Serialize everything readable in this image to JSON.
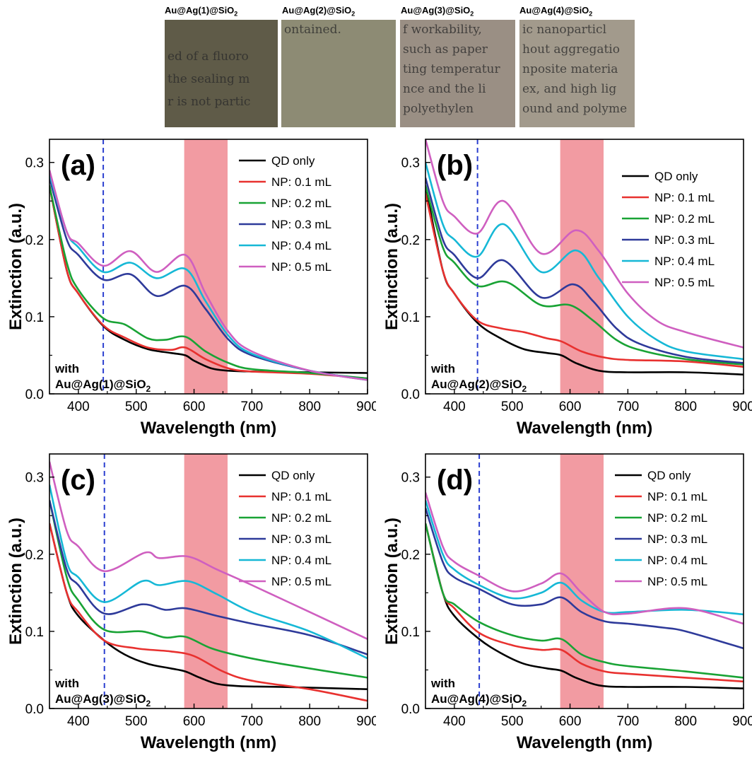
{
  "photos": [
    {
      "label": "Au@Ag(1)@SiO",
      "sub": "2",
      "bg": "#5f5b48",
      "lines": [
        "ed of a fluoro",
        "the sealing m",
        "r is not partic"
      ]
    },
    {
      "label": "Au@Ag(2)@SiO",
      "sub": "2",
      "bg": "#8d8b74",
      "lines": [
        "ontained.",
        "",
        ""
      ]
    },
    {
      "label": "Au@Ag(3)@SiO",
      "sub": "2",
      "bg": "#9a8f84",
      "lines": [
        "f workability,",
        "such as paper",
        "ting temperatur",
        "nce and the li",
        "polyethylen"
      ]
    },
    {
      "label": "Au@Ag(4)@SiO",
      "sub": "2",
      "bg": "#a29a8c",
      "lines": [
        "ic nanoparticl",
        "hout aggregatio",
        "nposite materia",
        "ex, and high lig",
        "ound and polyme"
      ]
    }
  ],
  "colors": {
    "QD only": "#000000",
    "NP: 0.1 mL": "#e8312f",
    "NP: 0.2 mL": "#19a335",
    "NP: 0.3 mL": "#2e3a9a",
    "NP: 0.4 mL": "#16b8d6",
    "NP: 0.5 mL": "#cf5fc0",
    "dashed_line": "#2b3fd0",
    "band": "#f08a92"
  },
  "chart_data": [
    {
      "type": "line",
      "panel": "(a)",
      "annotation": "with",
      "annotation_sub": "Au@Ag(1)@SiO2",
      "xlabel": "Wavelength (nm)",
      "ylabel": "Extinction (a.u.)",
      "xlim": [
        350,
        900
      ],
      "ylim": [
        0,
        0.33
      ],
      "xticks": [
        400,
        500,
        600,
        700,
        800,
        900
      ],
      "yticks": [
        0.0,
        0.1,
        0.2,
        0.3
      ],
      "dashed_x": 443,
      "band": [
        583,
        658
      ],
      "legend_position": "top-right",
      "series": [
        {
          "name": "QD only",
          "x": [
            350,
            380,
            400,
            443,
            480,
            520,
            560,
            585,
            600,
            630,
            660,
            700,
            800,
            900
          ],
          "y": [
            0.27,
            0.16,
            0.13,
            0.088,
            0.07,
            0.058,
            0.053,
            0.05,
            0.043,
            0.033,
            0.03,
            0.029,
            0.028,
            0.027
          ]
        },
        {
          "name": "NP: 0.1 mL",
          "x": [
            350,
            380,
            400,
            443,
            480,
            520,
            560,
            585,
            620,
            660,
            700,
            800,
            900
          ],
          "y": [
            0.27,
            0.16,
            0.13,
            0.089,
            0.073,
            0.06,
            0.057,
            0.06,
            0.045,
            0.033,
            0.029,
            0.026,
            0.02
          ]
        },
        {
          "name": "NP: 0.2 mL",
          "x": [
            350,
            380,
            400,
            443,
            480,
            520,
            550,
            585,
            620,
            660,
            700,
            800,
            900
          ],
          "y": [
            0.27,
            0.17,
            0.135,
            0.098,
            0.09,
            0.072,
            0.07,
            0.074,
            0.055,
            0.04,
            0.032,
            0.027,
            0.02
          ]
        },
        {
          "name": "NP: 0.3 mL",
          "x": [
            350,
            380,
            400,
            443,
            490,
            535,
            585,
            620,
            660,
            700,
            800,
            900
          ],
          "y": [
            0.28,
            0.2,
            0.18,
            0.148,
            0.155,
            0.127,
            0.14,
            0.11,
            0.07,
            0.05,
            0.03,
            0.018
          ]
        },
        {
          "name": "NP: 0.4 mL",
          "x": [
            350,
            380,
            400,
            443,
            490,
            535,
            585,
            620,
            660,
            700,
            800,
            900
          ],
          "y": [
            0.285,
            0.21,
            0.19,
            0.158,
            0.17,
            0.15,
            0.162,
            0.12,
            0.075,
            0.052,
            0.03,
            0.018
          ]
        },
        {
          "name": "NP: 0.5 mL",
          "x": [
            350,
            380,
            400,
            443,
            490,
            535,
            585,
            620,
            660,
            700,
            800,
            900
          ],
          "y": [
            0.29,
            0.21,
            0.195,
            0.166,
            0.185,
            0.158,
            0.18,
            0.13,
            0.08,
            0.055,
            0.03,
            0.018
          ]
        }
      ]
    },
    {
      "type": "line",
      "panel": "(b)",
      "annotation": "with",
      "annotation_sub": "Au@Ag(2)@SiO2",
      "xlabel": "Wavelength (nm)",
      "ylabel": "Extinction (a.u.)",
      "xlim": [
        350,
        900
      ],
      "ylim": [
        0,
        0.33
      ],
      "xticks": [
        400,
        500,
        600,
        700,
        800,
        900
      ],
      "yticks": [
        0.0,
        0.1,
        0.2,
        0.3
      ],
      "dashed_x": 440,
      "band": [
        583,
        658
      ],
      "legend_position": "top-right",
      "series": [
        {
          "name": "QD only",
          "x": [
            350,
            380,
            400,
            440,
            480,
            520,
            560,
            585,
            610,
            650,
            700,
            800,
            900
          ],
          "y": [
            0.27,
            0.16,
            0.13,
            0.092,
            0.072,
            0.058,
            0.053,
            0.05,
            0.04,
            0.03,
            0.028,
            0.028,
            0.025
          ]
        },
        {
          "name": "NP: 0.1 mL",
          "x": [
            350,
            380,
            400,
            440,
            480,
            520,
            560,
            585,
            620,
            660,
            700,
            800,
            900
          ],
          "y": [
            0.26,
            0.16,
            0.13,
            0.095,
            0.085,
            0.08,
            0.072,
            0.068,
            0.055,
            0.047,
            0.044,
            0.042,
            0.035
          ]
        },
        {
          "name": "NP: 0.2 mL",
          "x": [
            350,
            380,
            400,
            440,
            490,
            550,
            600,
            640,
            680,
            720,
            800,
            900
          ],
          "y": [
            0.27,
            0.19,
            0.17,
            0.14,
            0.145,
            0.115,
            0.115,
            0.095,
            0.07,
            0.057,
            0.045,
            0.038
          ]
        },
        {
          "name": "NP: 0.3 mL",
          "x": [
            350,
            380,
            400,
            440,
            485,
            550,
            605,
            640,
            680,
            720,
            800,
            900
          ],
          "y": [
            0.28,
            0.2,
            0.18,
            0.15,
            0.173,
            0.125,
            0.142,
            0.12,
            0.085,
            0.065,
            0.048,
            0.04
          ]
        },
        {
          "name": "NP: 0.4 mL",
          "x": [
            350,
            380,
            400,
            440,
            485,
            550,
            610,
            650,
            700,
            750,
            800,
            900
          ],
          "y": [
            0.3,
            0.22,
            0.2,
            0.178,
            0.22,
            0.158,
            0.186,
            0.15,
            0.1,
            0.07,
            0.055,
            0.045
          ]
        },
        {
          "name": "NP: 0.5 mL",
          "x": [
            350,
            380,
            400,
            440,
            485,
            550,
            610,
            650,
            700,
            750,
            800,
            900
          ],
          "y": [
            0.33,
            0.25,
            0.23,
            0.208,
            0.25,
            0.182,
            0.212,
            0.185,
            0.13,
            0.095,
            0.08,
            0.06
          ]
        }
      ]
    },
    {
      "type": "line",
      "panel": "(c)",
      "annotation": "with",
      "annotation_sub": "Au@Ag(3)@SiO2",
      "xlabel": "Wavelength (nm)",
      "ylabel": "Extinction (a.u.)",
      "xlim": [
        350,
        900
      ],
      "ylim": [
        0,
        0.33
      ],
      "xticks": [
        400,
        500,
        600,
        700,
        800,
        900
      ],
      "yticks": [
        0.0,
        0.1,
        0.2,
        0.3
      ],
      "dashed_x": 445,
      "band": [
        583,
        658
      ],
      "legend_position": "top-right",
      "series": [
        {
          "name": "QD only",
          "x": [
            350,
            380,
            400,
            445,
            480,
            520,
            560,
            585,
            610,
            640,
            680,
            750,
            900
          ],
          "y": [
            0.24,
            0.15,
            0.12,
            0.088,
            0.07,
            0.058,
            0.052,
            0.048,
            0.04,
            0.032,
            0.029,
            0.028,
            0.025
          ]
        },
        {
          "name": "NP: 0.1 mL",
          "x": [
            350,
            380,
            400,
            445,
            500,
            560,
            600,
            650,
            700,
            800,
            900
          ],
          "y": [
            0.24,
            0.15,
            0.125,
            0.088,
            0.078,
            0.074,
            0.068,
            0.048,
            0.036,
            0.025,
            0.01
          ]
        },
        {
          "name": "NP: 0.2 mL",
          "x": [
            350,
            380,
            400,
            445,
            510,
            550,
            585,
            630,
            680,
            750,
            900
          ],
          "y": [
            0.27,
            0.17,
            0.14,
            0.102,
            0.1,
            0.092,
            0.093,
            0.078,
            0.068,
            0.058,
            0.04
          ]
        },
        {
          "name": "NP: 0.3 mL",
          "x": [
            350,
            380,
            400,
            445,
            510,
            550,
            585,
            640,
            700,
            800,
            900
          ],
          "y": [
            0.27,
            0.18,
            0.16,
            0.123,
            0.135,
            0.128,
            0.13,
            0.12,
            0.11,
            0.095,
            0.07
          ]
        },
        {
          "name": "NP: 0.4 mL",
          "x": [
            350,
            380,
            400,
            445,
            510,
            540,
            590,
            640,
            700,
            800,
            900
          ],
          "y": [
            0.29,
            0.19,
            0.17,
            0.138,
            0.165,
            0.16,
            0.165,
            0.148,
            0.125,
            0.1,
            0.065
          ]
        },
        {
          "name": "NP: 0.5 mL",
          "x": [
            350,
            380,
            400,
            445,
            515,
            540,
            590,
            640,
            700,
            800,
            900
          ],
          "y": [
            0.32,
            0.23,
            0.21,
            0.178,
            0.202,
            0.195,
            0.197,
            0.18,
            0.16,
            0.125,
            0.09
          ]
        }
      ]
    },
    {
      "type": "line",
      "panel": "(d)",
      "annotation": "with",
      "annotation_sub": "Au@Ag(4)@SiO2",
      "xlabel": "Wavelength (nm)",
      "ylabel": "Extinction (a.u.)",
      "xlim": [
        350,
        900
      ],
      "ylim": [
        0,
        0.33
      ],
      "xticks": [
        400,
        500,
        600,
        700,
        800,
        900
      ],
      "yticks": [
        0.0,
        0.1,
        0.2,
        0.3
      ],
      "dashed_x": 443,
      "band": [
        583,
        658
      ],
      "legend_position": "top-right",
      "series": [
        {
          "name": "QD only",
          "x": [
            350,
            380,
            400,
            443,
            480,
            520,
            560,
            585,
            610,
            650,
            700,
            800,
            900
          ],
          "y": [
            0.24,
            0.15,
            0.12,
            0.09,
            0.072,
            0.058,
            0.052,
            0.049,
            0.04,
            0.03,
            0.028,
            0.028,
            0.026
          ]
        },
        {
          "name": "NP: 0.1 mL",
          "x": [
            350,
            380,
            400,
            443,
            500,
            550,
            585,
            620,
            660,
            700,
            800,
            900
          ],
          "y": [
            0.24,
            0.15,
            0.13,
            0.098,
            0.082,
            0.076,
            0.076,
            0.058,
            0.048,
            0.045,
            0.04,
            0.035
          ]
        },
        {
          "name": "NP: 0.2 mL",
          "x": [
            350,
            380,
            400,
            443,
            500,
            550,
            585,
            620,
            660,
            700,
            800,
            900
          ],
          "y": [
            0.24,
            0.15,
            0.135,
            0.112,
            0.095,
            0.088,
            0.09,
            0.07,
            0.06,
            0.055,
            0.048,
            0.04
          ]
        },
        {
          "name": "NP: 0.3 mL",
          "x": [
            350,
            380,
            400,
            443,
            500,
            550,
            585,
            620,
            660,
            700,
            760,
            800,
            900
          ],
          "y": [
            0.26,
            0.19,
            0.17,
            0.155,
            0.135,
            0.135,
            0.144,
            0.125,
            0.113,
            0.11,
            0.105,
            0.1,
            0.078
          ]
        },
        {
          "name": "NP: 0.4 mL",
          "x": [
            350,
            380,
            400,
            443,
            500,
            550,
            585,
            620,
            660,
            700,
            800,
            900
          ],
          "y": [
            0.27,
            0.2,
            0.18,
            0.16,
            0.143,
            0.15,
            0.163,
            0.14,
            0.125,
            0.125,
            0.128,
            0.122
          ]
        },
        {
          "name": "NP: 0.5 mL",
          "x": [
            350,
            380,
            400,
            443,
            500,
            550,
            585,
            620,
            660,
            700,
            800,
            900
          ],
          "y": [
            0.28,
            0.21,
            0.19,
            0.172,
            0.152,
            0.162,
            0.175,
            0.15,
            0.125,
            0.123,
            0.13,
            0.11
          ]
        }
      ]
    }
  ]
}
